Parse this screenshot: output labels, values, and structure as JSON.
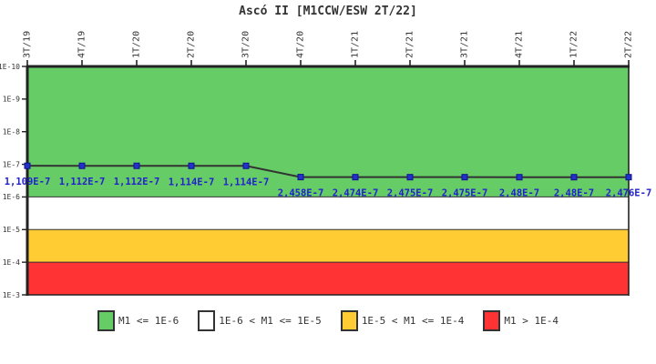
{
  "title": "Ascó II [M1CCW/ESW 2T/22]",
  "chart_data": {
    "type": "line",
    "title": "Ascó II [M1CCW/ESW 2T/22]",
    "x_categories": [
      "3T/19",
      "4T/19",
      "1T/20",
      "2T/20",
      "3T/20",
      "4T/20",
      "1T/21",
      "2T/21",
      "3T/21",
      "4T/21",
      "1T/22",
      "2T/22"
    ],
    "series": [
      {
        "name": "M1",
        "values": [
          1.109e-07,
          1.112e-07,
          1.112e-07,
          1.114e-07,
          1.114e-07,
          2.458e-07,
          2.474e-07,
          2.475e-07,
          2.475e-07,
          2.48e-07,
          2.48e-07,
          2.476e-07
        ],
        "point_labels": [
          "1,109E-7",
          "1,112E-7",
          "1,112E-7",
          "1,114E-7",
          "1,114E-7",
          "2,458E-7",
          "2,474E-7",
          "2,475E-7",
          "2,475E-7",
          "2,48E-7",
          "2,48E-7",
          "2,476E-7"
        ]
      }
    ],
    "y_axis": {
      "scale": "log",
      "inverted": true,
      "min": 1e-10,
      "max": 0.001,
      "tick_labels": [
        "1E-10",
        "1E-9",
        "1E-8",
        "1E-7",
        "1E-6",
        "1E-5",
        "1E-4",
        "1E-3"
      ],
      "tick_values": [
        1e-10,
        1e-09,
        1e-08,
        1e-07,
        1e-06,
        1e-05,
        0.0001,
        0.001
      ]
    },
    "bands": [
      {
        "from": 1e-10,
        "to": 1e-06,
        "color": "#66CC66",
        "meaning": "M1 <= 1E-6"
      },
      {
        "from": 1e-06,
        "to": 1e-05,
        "color": "#FFFFFF",
        "meaning": "1E-6 < M1 <= 1E-5"
      },
      {
        "from": 1e-05,
        "to": 0.0001,
        "color": "#FFCC33",
        "meaning": "1E-5 < M1 <= 1E-4"
      },
      {
        "from": 0.0001,
        "to": 0.001,
        "color": "#FF3333",
        "meaning": "M1 > 1E-4"
      }
    ],
    "colors": {
      "line": "#333333",
      "marker": "#2233CC",
      "marker_edge": "#111188",
      "point_label": "#2222CC",
      "axis": "#222222",
      "tick_text": "#333333"
    },
    "grid": false,
    "legend_position": "bottom"
  },
  "legend": {
    "items": [
      {
        "label": "M1 <= 1E-6",
        "color": "#66CC66"
      },
      {
        "label": "1E-6 < M1 <= 1E-5",
        "color": "#FFFFFF"
      },
      {
        "label": "1E-5 < M1 <= 1E-4",
        "color": "#FFCC33"
      },
      {
        "label": "M1 > 1E-4",
        "color": "#FF3333"
      }
    ]
  }
}
